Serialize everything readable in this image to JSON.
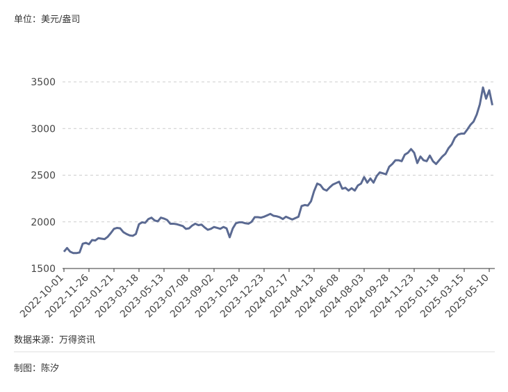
{
  "chart_data": {
    "type": "line",
    "unit_label": "单位：美元/盎司",
    "source": "数据来源：万得资讯",
    "credit": "制图：陈汐",
    "categories": [
      "2022-10-01",
      null,
      null,
      null,
      null,
      null,
      null,
      null,
      "2022-11-26",
      null,
      null,
      null,
      null,
      null,
      null,
      null,
      "2023-01-21",
      null,
      null,
      null,
      null,
      null,
      null,
      null,
      "2023-03-18",
      null,
      null,
      null,
      null,
      null,
      null,
      null,
      "2023-05-13",
      null,
      null,
      null,
      null,
      null,
      null,
      null,
      "2023-07-08",
      null,
      null,
      null,
      null,
      null,
      null,
      null,
      "2023-09-02",
      null,
      null,
      null,
      null,
      null,
      null,
      null,
      "2023-10-28",
      null,
      null,
      null,
      null,
      null,
      null,
      null,
      "2023-12-23",
      null,
      null,
      null,
      null,
      null,
      null,
      null,
      "2024-02-17",
      null,
      null,
      null,
      null,
      null,
      null,
      null,
      "2024-04-13",
      null,
      null,
      null,
      null,
      null,
      null,
      null,
      "2024-06-08",
      null,
      null,
      null,
      null,
      null,
      null,
      null,
      "2024-08-03",
      null,
      null,
      null,
      null,
      null,
      null,
      null,
      "2024-09-28",
      null,
      null,
      null,
      null,
      null,
      null,
      null,
      "2024-11-23",
      null,
      null,
      null,
      null,
      null,
      null,
      null,
      "2025-01-18",
      null,
      null,
      null,
      null,
      null,
      null,
      null,
      "2025-03-15",
      null,
      null,
      null,
      null,
      null,
      null,
      null,
      "2025-05-10",
      null
    ],
    "values": [
      1680,
      1720,
      1680,
      1665,
      1665,
      1672,
      1765,
      1775,
      1760,
      1805,
      1800,
      1825,
      1820,
      1815,
      1840,
      1880,
      1925,
      1935,
      1930,
      1890,
      1870,
      1855,
      1850,
      1870,
      1975,
      1995,
      1990,
      2030,
      2045,
      2015,
      2005,
      2045,
      2035,
      2020,
      1980,
      1980,
      1975,
      1965,
      1955,
      1925,
      1930,
      1960,
      1980,
      1965,
      1970,
      1940,
      1915,
      1925,
      1945,
      1935,
      1925,
      1945,
      1930,
      1835,
      1930,
      1985,
      1995,
      1995,
      1985,
      1980,
      2000,
      2050,
      2050,
      2045,
      2055,
      2070,
      2085,
      2065,
      2060,
      2050,
      2030,
      2055,
      2040,
      2025,
      2040,
      2055,
      2170,
      2180,
      2175,
      2220,
      2330,
      2410,
      2395,
      2350,
      2335,
      2370,
      2400,
      2415,
      2430,
      2355,
      2365,
      2335,
      2360,
      2335,
      2390,
      2410,
      2480,
      2420,
      2465,
      2420,
      2490,
      2530,
      2520,
      2510,
      2590,
      2620,
      2660,
      2660,
      2650,
      2720,
      2740,
      2780,
      2740,
      2630,
      2700,
      2660,
      2650,
      2710,
      2650,
      2620,
      2660,
      2700,
      2730,
      2790,
      2830,
      2900,
      2935,
      2945,
      2945,
      2990,
      3040,
      3075,
      3150,
      3260,
      3440,
      3320,
      3410,
      3250
    ],
    "color": "#5b6a92",
    "ylim": [
      1500,
      3500
    ],
    "yticks": [
      1500,
      2000,
      2500,
      3000,
      3500
    ],
    "grid": true
  }
}
